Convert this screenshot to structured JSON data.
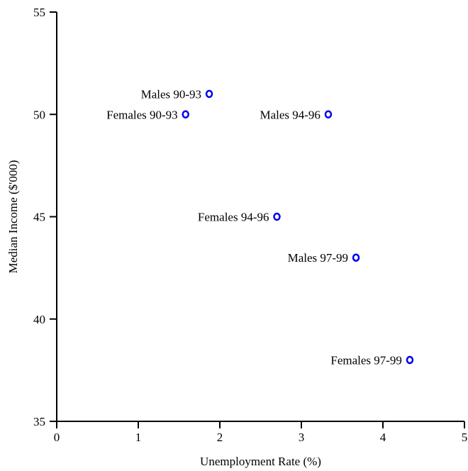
{
  "chart_data": {
    "type": "scatter",
    "title": "",
    "xlabel": "Unemployment Rate (%)",
    "ylabel": "Median Income ($'000)",
    "xlim": [
      0,
      5
    ],
    "ylim": [
      35,
      55
    ],
    "xticks": [
      0,
      1,
      2,
      3,
      4,
      5
    ],
    "yticks": [
      35,
      40,
      45,
      50,
      55
    ],
    "grid": false,
    "marker": "open-circle",
    "marker_color": "#0000ee",
    "points": [
      {
        "label": "Males 90-93",
        "x": 1.87,
        "y": 51
      },
      {
        "label": "Females 90-93",
        "x": 1.58,
        "y": 50
      },
      {
        "label": "Males 94-96",
        "x": 3.33,
        "y": 50
      },
      {
        "label": "Females 94-96",
        "x": 2.7,
        "y": 45
      },
      {
        "label": "Males 97-99",
        "x": 3.67,
        "y": 43
      },
      {
        "label": "Females 97-99",
        "x": 4.33,
        "y": 38
      }
    ]
  }
}
